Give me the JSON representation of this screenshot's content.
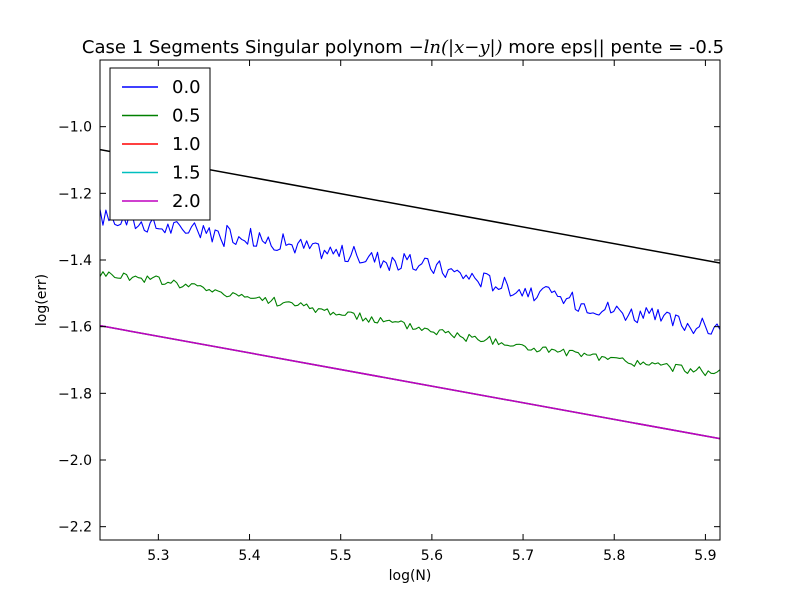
{
  "chart_data": {
    "type": "line",
    "title_prefix": "Case 1 Segments Singular polynom ",
    "title_math": "−ln(|x−y|)",
    "title_suffix": " more eps|| pente = -0.5",
    "xlabel": "log(N)",
    "ylabel": "log(err)",
    "xlim": [
      5.236,
      5.916
    ],
    "ylim": [
      -2.24,
      -0.8
    ],
    "xticks": [
      5.3,
      5.4,
      5.5,
      5.6,
      5.7,
      5.8,
      5.9
    ],
    "yticks": [
      -2.2,
      -2.0,
      -1.8,
      -1.6,
      -1.4,
      -1.2,
      -1.0
    ],
    "xtick_labels": [
      "5.3",
      "5.4",
      "5.5",
      "5.6",
      "5.7",
      "5.8",
      "5.9"
    ],
    "ytick_labels": [
      "−2.2",
      "−2.0",
      "−1.8",
      "−1.6",
      "−1.4",
      "−1.2",
      "−1.0"
    ],
    "grid": false,
    "legend_position": "top-left",
    "series": [
      {
        "name": "0.0",
        "color": "#0000ff",
        "style": "noisy",
        "x": [
          5.236,
          5.3,
          5.4,
          5.5,
          5.6,
          5.7,
          5.8,
          5.916
        ],
        "y": [
          -1.27,
          -1.3,
          -1.33,
          -1.38,
          -1.42,
          -1.49,
          -1.55,
          -1.61
        ]
      },
      {
        "name": "0.5",
        "color": "#008000",
        "style": "noisy",
        "x": [
          5.236,
          5.3,
          5.4,
          5.5,
          5.6,
          5.7,
          5.8,
          5.916
        ],
        "y": [
          -1.44,
          -1.46,
          -1.51,
          -1.56,
          -1.61,
          -1.66,
          -1.7,
          -1.74
        ]
      },
      {
        "name": "1.0",
        "color": "#ff0000",
        "style": "straight",
        "x": [
          5.236,
          5.916
        ],
        "y": [
          -1.597,
          -1.936
        ]
      },
      {
        "name": "1.5",
        "color": "#00bfbf",
        "style": "straight",
        "x": [
          5.236,
          5.916
        ],
        "y": [
          -1.597,
          -1.936
        ]
      },
      {
        "name": "2.0",
        "color": "#bf00bf",
        "style": "straight",
        "x": [
          5.236,
          5.916
        ],
        "y": [
          -1.597,
          -1.936
        ]
      }
    ],
    "reference_line": {
      "color": "#000000",
      "x": [
        5.236,
        5.916
      ],
      "y": [
        -1.069,
        -1.409
      ]
    }
  }
}
